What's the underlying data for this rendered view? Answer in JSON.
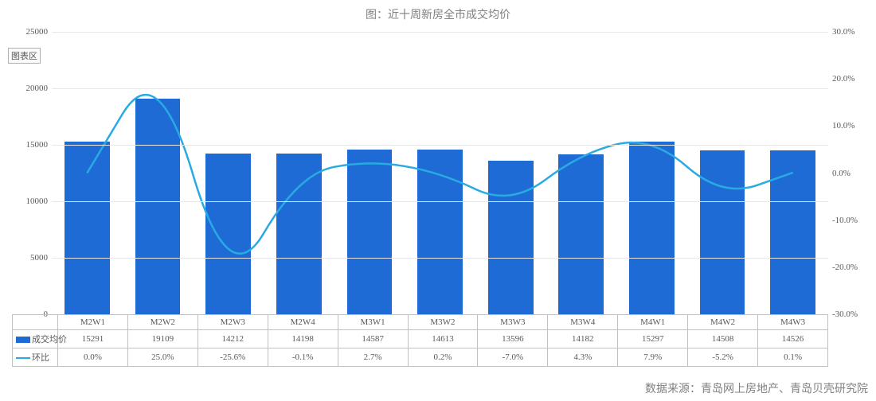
{
  "title": "图：近十周新房全市成交均价",
  "legend_box_label": "图表区",
  "source_label": "数据来源：青岛网上房地产、青岛贝壳研究院",
  "categories": [
    "M2W1",
    "M2W2",
    "M2W3",
    "M2W4",
    "M3W1",
    "M3W2",
    "M3W3",
    "M3W4",
    "M4W1",
    "M4W2",
    "M4W3"
  ],
  "series_bar": {
    "name": "成交均价",
    "values": [
      15291,
      19109,
      14212,
      14198,
      14587,
      14613,
      13596,
      14182,
      15297,
      14508,
      14526
    ],
    "color": "#1f6bd6"
  },
  "series_line": {
    "name": "环比",
    "values_pct": [
      0.0,
      25.0,
      -25.6,
      -0.1,
      2.7,
      0.2,
      -7.0,
      4.3,
      7.9,
      -5.2,
      0.1
    ],
    "display": [
      "0.0%",
      "25.0%",
      "-25.6%",
      "-0.1%",
      "2.7%",
      "0.2%",
      "-7.0%",
      "4.3%",
      "7.9%",
      "-5.2%",
      "0.1%"
    ],
    "color": "#29abe2"
  },
  "axis_left": {
    "min": 0,
    "max": 25000,
    "step": 5000,
    "labels": [
      "0",
      "5000",
      "10000",
      "15000",
      "20000",
      "25000"
    ]
  },
  "axis_right": {
    "min": -30,
    "max": 30,
    "step": 10,
    "labels": [
      "-30.0%",
      "-20.0%",
      "-10.0%",
      "0.0%",
      "10.0%",
      "20.0%",
      "30.0%"
    ]
  },
  "colors": {
    "grid": "#e8e8e8",
    "axis_text": "#595959",
    "title_text": "#808080",
    "background": "#ffffff"
  },
  "font_size": {
    "title": 14,
    "axis": 11,
    "table": 11,
    "source": 14
  }
}
